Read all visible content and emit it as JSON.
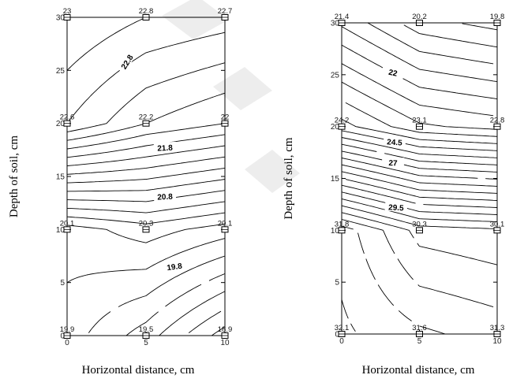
{
  "chart_data": [
    {
      "type": "contour",
      "title": "",
      "xlabel": "Horizontal distance, cm",
      "ylabel": "Depth of soil, cm",
      "xlim": [
        0,
        10
      ],
      "ylim": [
        0,
        30
      ],
      "x_ticks": [
        "0",
        "5",
        "10"
      ],
      "y_ticks": [
        "0",
        "5",
        "10",
        "15",
        "20",
        "25",
        "30"
      ],
      "sensor_points": [
        {
          "x": 0,
          "y": 30,
          "value": "23"
        },
        {
          "x": 5,
          "y": 30,
          "value": "22.8"
        },
        {
          "x": 10,
          "y": 30,
          "value": "22.7"
        },
        {
          "x": 0,
          "y": 20,
          "value": "22.6"
        },
        {
          "x": 5,
          "y": 20,
          "value": "22.2"
        },
        {
          "x": 10,
          "y": 20,
          "value": "22"
        },
        {
          "x": 0,
          "y": 10,
          "value": "20.1"
        },
        {
          "x": 5,
          "y": 10,
          "value": "20.3"
        },
        {
          "x": 10,
          "y": 10,
          "value": "20.1"
        },
        {
          "x": 0,
          "y": 0,
          "value": "19.9"
        },
        {
          "x": 5,
          "y": 0,
          "value": "19.5"
        },
        {
          "x": 10,
          "y": 0,
          "value": "18.9"
        }
      ],
      "contour_labels": [
        {
          "text": "22.8",
          "x": 3.8,
          "y": 25.8,
          "angle": -58
        },
        {
          "text": "21.8",
          "x": 6.2,
          "y": 17.7,
          "angle": -3
        },
        {
          "text": "20.8",
          "x": 6.2,
          "y": 13.1,
          "angle": -3
        },
        {
          "text": "19.8",
          "x": 6.8,
          "y": 6.5,
          "angle": -8
        }
      ]
    },
    {
      "type": "contour",
      "title": "",
      "xlabel": "Horizontal distance, cm",
      "ylabel": "Depth of soil, cm",
      "xlim": [
        0,
        10
      ],
      "ylim": [
        0,
        30
      ],
      "x_ticks": [
        "0",
        "5",
        "10"
      ],
      "y_ticks": [
        "0",
        "5",
        "10",
        "15",
        "20",
        "25",
        "30"
      ],
      "sensor_points": [
        {
          "x": 0,
          "y": 30,
          "value": "21.4"
        },
        {
          "x": 5,
          "y": 30,
          "value": "20.2"
        },
        {
          "x": 10,
          "y": 30,
          "value": "19.8"
        },
        {
          "x": 0,
          "y": 20,
          "value": "24.2"
        },
        {
          "x": 5,
          "y": 20,
          "value": "23.1"
        },
        {
          "x": 10,
          "y": 20,
          "value": "22.8"
        },
        {
          "x": 0,
          "y": 10,
          "value": "31.8"
        },
        {
          "x": 5,
          "y": 10,
          "value": "30.3"
        },
        {
          "x": 10,
          "y": 10,
          "value": "30.1"
        },
        {
          "x": 0,
          "y": 0,
          "value": "32.1"
        },
        {
          "x": 5,
          "y": 0,
          "value": "31.6"
        },
        {
          "x": 10,
          "y": 0,
          "value": "31.3"
        }
      ],
      "contour_labels": [
        {
          "text": "22",
          "x": 3.3,
          "y": 25.2,
          "angle": 12
        },
        {
          "text": "24.5",
          "x": 3.4,
          "y": 18.5,
          "angle": 4
        },
        {
          "text": "27",
          "x": 3.3,
          "y": 16.5,
          "angle": 2
        },
        {
          "text": "29.5",
          "x": 3.5,
          "y": 12.2,
          "angle": 3
        }
      ]
    }
  ]
}
